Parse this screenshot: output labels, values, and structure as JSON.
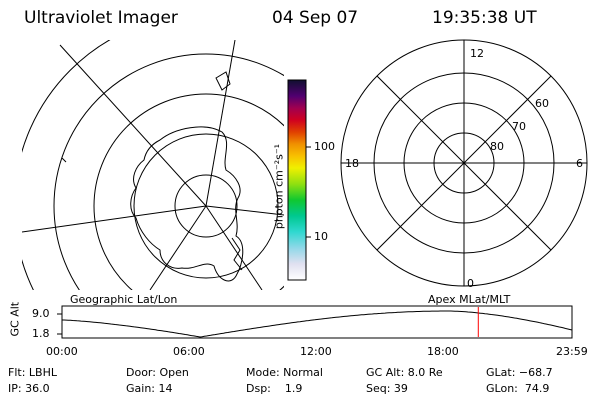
{
  "header": {
    "instrument": "Ultraviolet Imager",
    "date": "04 Sep 07",
    "time": "19:35:38 UT"
  },
  "colorbar": {
    "unit_label": "photon cm⁻²s⁻¹",
    "tick_100": "100",
    "tick_10": "10"
  },
  "polar_plot": {
    "label_top": "12",
    "label_bottom": "0",
    "label_left": "18",
    "label_right": "6",
    "ring_labels": [
      "60",
      "70",
      "80"
    ]
  },
  "panels": {
    "left_title": "Geographic Lat/Lon",
    "right_title": "Apex MLat/MLT"
  },
  "altitude_chart": {
    "y_label": "GC Alt",
    "y_max": "9.0",
    "y_min": "1.8",
    "x_ticks": [
      "00:00",
      "06:00",
      "12:00",
      "18:00",
      "23:59"
    ],
    "marker_hours": 19.59,
    "marker_color": "#ff0000"
  },
  "status": {
    "row1": [
      "Flt: LBHL",
      "Door: Open",
      "Mode: Normal",
      "GC Alt: 8.0 Re",
      "GLat: −68.7"
    ],
    "row2": [
      "IP: 36.0",
      "Gain: 14",
      "Dsp:    1.9",
      "Seq: 39",
      "GLon:  74.9"
    ]
  },
  "colors": {
    "foreground": "#000000",
    "marker": "#ff0000"
  }
}
